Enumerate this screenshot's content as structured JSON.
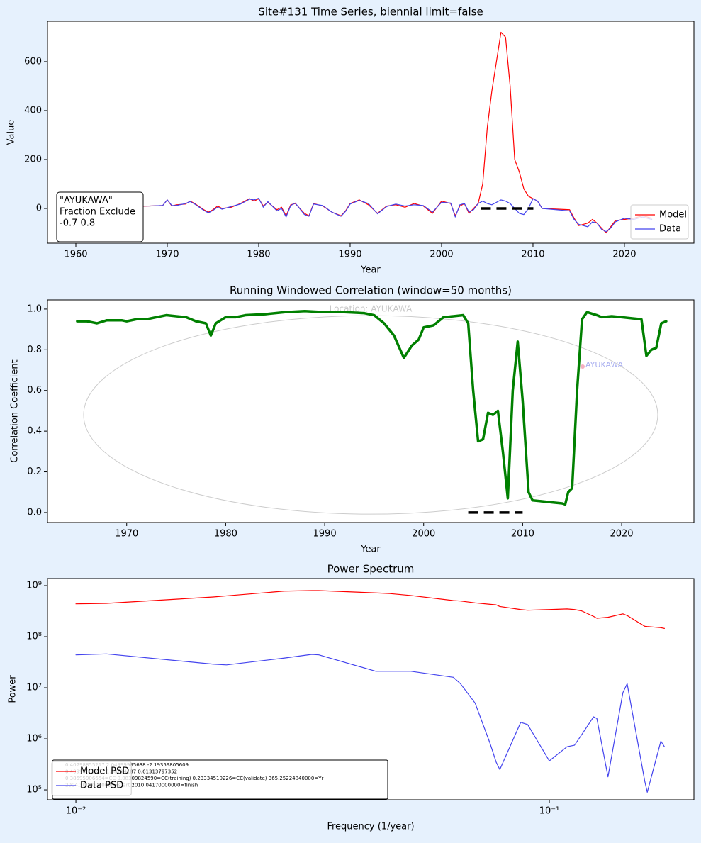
{
  "chart_data": [
    {
      "type": "line",
      "title": "Site#131 Time Series, biennial limit=false",
      "x_label": "Year",
      "y_label": "Value",
      "xlim": [
        1956.9,
        2027.6
      ],
      "ylim": [
        -142,
        765
      ],
      "xticks": [
        1960,
        1970,
        1980,
        1990,
        2000,
        2010,
        2020
      ],
      "yticks": [
        0,
        200,
        400,
        600
      ],
      "legend": "lower right",
      "annotation_box": [
        "\"AYUKAWA\"",
        "Fraction Exclude",
        "-0.7 0.8"
      ],
      "reference_segment": {
        "x": [
          2004.3,
          2010.04
        ],
        "y": 0,
        "color": "#000000"
      },
      "x": [
        1964,
        1965,
        1966,
        1968,
        1969.5,
        1970,
        1970.5,
        1971,
        1972,
        1972.5,
        1973,
        1974,
        1974.5,
        1975,
        1975.5,
        1976,
        1977,
        1978,
        1979,
        1979.5,
        1980,
        1980.5,
        1981,
        1982,
        1982.5,
        1983,
        1983.5,
        1984,
        1985,
        1985.5,
        1986,
        1987,
        1988,
        1989,
        1989.5,
        1990,
        1991,
        1992,
        1993,
        1994,
        1995,
        1996,
        1997,
        1998,
        1999,
        2000,
        2001,
        2001.5,
        2002,
        2002.5,
        2003,
        2003.5,
        2004,
        2004.5,
        2005,
        2005.5,
        2006,
        2006.5,
        2007,
        2007.5,
        2008,
        2008.5,
        2009,
        2009.5,
        2010,
        2010.5,
        2011,
        2014,
        2014.5,
        2015,
        2016,
        2016.5,
        2017,
        2017.5,
        2018,
        2018.5,
        2019,
        2020,
        2021,
        2022,
        2023
      ],
      "series": [
        {
          "name": "Model",
          "color": "#ff0000",
          "linewidth": 1.2,
          "values": [
            20,
            15,
            8,
            10,
            12,
            35,
            10,
            15,
            18,
            30,
            20,
            -5,
            -15,
            -5,
            10,
            0,
            5,
            20,
            40,
            30,
            40,
            10,
            25,
            -5,
            5,
            -30,
            15,
            20,
            -20,
            -30,
            20,
            10,
            -15,
            -30,
            -10,
            20,
            35,
            15,
            -20,
            10,
            15,
            5,
            20,
            10,
            -20,
            30,
            20,
            -30,
            10,
            20,
            -20,
            0,
            20,
            100,
            330,
            480,
            600,
            720,
            700,
            500,
            200,
            150,
            80,
            50,
            40,
            30,
            0,
            -5,
            -40,
            -70,
            -60,
            -45,
            -60,
            -80,
            -100,
            -75,
            -50,
            -45,
            -40,
            -30,
            -40
          ]
        },
        {
          "name": "Data",
          "color": "#4444ee",
          "linewidth": 1.2,
          "values": [
            25,
            18,
            10,
            10,
            12,
            35,
            12,
            12,
            20,
            28,
            18,
            -8,
            -18,
            -8,
            5,
            -3,
            8,
            18,
            38,
            35,
            42,
            5,
            28,
            -10,
            0,
            -35,
            12,
            22,
            -25,
            -32,
            18,
            12,
            -15,
            -32,
            -12,
            18,
            33,
            20,
            -22,
            8,
            18,
            10,
            15,
            12,
            -15,
            25,
            22,
            -35,
            15,
            20,
            -15,
            -5,
            20,
            30,
            20,
            15,
            25,
            35,
            30,
            20,
            0,
            -20,
            -25,
            0,
            40,
            30,
            0,
            -10,
            -45,
            -65,
            -75,
            -55,
            -60,
            -85,
            -95,
            -80,
            -55,
            -40,
            -45,
            -35,
            -45
          ]
        }
      ]
    },
    {
      "type": "line",
      "title": "Running Windowed Correlation (window=50 months)",
      "x_label": "Year",
      "y_label": "Correlation Coefficient",
      "xlim": [
        1962.0,
        2027.3
      ],
      "ylim": [
        -0.049,
        1.045
      ],
      "xticks": [
        1970,
        1980,
        1990,
        2000,
        2010,
        2020
      ],
      "yticks": [
        {
          "value": 0,
          "label": "0.0"
        },
        0.2,
        0.4,
        0.6,
        0.8,
        {
          "value": 1,
          "label": "1.0"
        }
      ],
      "map": {
        "title": "Location: AYUKAWA",
        "site_label": "AYUKAWA"
      },
      "reference_segment": {
        "x": [
          2004.5,
          2010.0
        ],
        "y": 0,
        "color": "#000000"
      },
      "x": [
        1965,
        1966,
        1967,
        1968,
        1969.5,
        1970,
        1971,
        1972,
        1973,
        1974,
        1975,
        1976,
        1977,
        1978,
        1978.5,
        1979,
        1980,
        1981,
        1982,
        1984,
        1986,
        1988,
        1990,
        1992,
        1994,
        1995,
        1996,
        1997,
        1998,
        1998.8,
        1999.5,
        2000,
        2001,
        2002,
        2003,
        2004,
        2004.5,
        2005,
        2005.5,
        2006,
        2006.5,
        2007,
        2007.5,
        2008,
        2008.5,
        2009,
        2009.5,
        2010,
        2010.6,
        2011,
        2012,
        2013,
        2014,
        2014.3,
        2014.6,
        2015,
        2015.5,
        2016,
        2016.5,
        2017.5,
        2018,
        2019,
        2020,
        2021,
        2022,
        2022.5,
        2023,
        2023.5,
        2024,
        2024.5
      ],
      "series": [
        {
          "name": "Correlation",
          "color": "#008000",
          "linewidth": 3.5,
          "values": [
            0.94,
            0.94,
            0.93,
            0.945,
            0.945,
            0.94,
            0.95,
            0.95,
            0.96,
            0.97,
            0.965,
            0.96,
            0.94,
            0.93,
            0.87,
            0.93,
            0.96,
            0.96,
            0.97,
            0.975,
            0.985,
            0.99,
            0.985,
            0.985,
            0.98,
            0.97,
            0.93,
            0.87,
            0.76,
            0.82,
            0.85,
            0.91,
            0.92,
            0.96,
            0.965,
            0.97,
            0.93,
            0.6,
            0.35,
            0.36,
            0.49,
            0.48,
            0.5,
            0.3,
            0.07,
            0.6,
            0.84,
            0.55,
            0.1,
            0.06,
            0.055,
            0.05,
            0.045,
            0.04,
            0.1,
            0.12,
            0.6,
            0.95,
            0.985,
            0.97,
            0.96,
            0.965,
            0.96,
            0.955,
            0.95,
            0.77,
            0.8,
            0.81,
            0.93,
            0.94
          ]
        }
      ]
    },
    {
      "type": "line",
      "title": "Power Spectrum",
      "x_label": "Frequency (1/year)",
      "y_label": "Power",
      "xscale": "log",
      "yscale": "log",
      "xlim": [
        0.00871,
        0.202
      ],
      "ylim": [
        64000,
        1377000000
      ],
      "xticks": [
        {
          "value": 0.01,
          "label": "10⁻²"
        },
        {
          "value": 0.1,
          "label": "10⁻¹"
        }
      ],
      "yticks": [
        {
          "value": 100000,
          "label": "10⁵"
        },
        {
          "value": 1000000,
          "label": "10⁶"
        },
        {
          "value": 10000000,
          "label": "10⁷"
        },
        {
          "value": 100000000,
          "label": "10⁸"
        },
        {
          "value": 1000000000,
          "label": "10⁹"
        }
      ],
      "legend": "lower left",
      "info_box": [
        "0.40798855217      2.04999985638      -2.19359805609",
        "0.40998855217      1.58714187      0.61313797352",
        "0.38595906654=CC      0.08309824590=CC(training)      0.23334510226=CC(validate)   365.25224840000=Yr",
        "2004.30000000000=start  2010.04170000000=finish"
      ],
      "x": [
        0.01,
        0.0116,
        0.0195,
        0.0208,
        0.0275,
        0.0315,
        0.0326,
        0.043,
        0.046,
        0.051,
        0.0627,
        0.0649,
        0.0697,
        0.075,
        0.0772,
        0.0786,
        0.087,
        0.09,
        0.1,
        0.109,
        0.113,
        0.117,
        0.124,
        0.126,
        0.133,
        0.143,
        0.146,
        0.159,
        0.161,
        0.172,
        0.175
      ],
      "series": [
        {
          "name": "Model PSD",
          "color": "#ff0000",
          "linewidth": 1.2,
          "values": [
            440000000,
            450000000,
            600000000,
            630000000,
            780000000,
            800000000,
            800000000,
            720000000,
            700000000,
            640000000,
            510000000,
            500000000,
            460000000,
            430000000,
            420000000,
            390000000,
            340000000,
            330000000,
            340000000,
            350000000,
            340000000,
            320000000,
            250000000,
            230000000,
            240000000,
            280000000,
            260000000,
            160000000,
            158000000,
            150000000,
            145000000
          ]
        },
        {
          "name": "Data PSD",
          "color": "#4444ee",
          "linewidth": 1.2,
          "values": [
            44000000,
            46000000,
            29000000,
            28000000,
            38000000,
            45000000,
            44000000,
            21000000,
            21000000,
            21000000,
            16000000,
            12000000,
            5000000,
            800000,
            350000,
            250000,
            2100000,
            1900000,
            370000,
            700000,
            750000,
            1200000,
            2700000,
            2500000,
            180000,
            8000000,
            12000000,
            150000,
            90000,
            900000,
            700000
          ]
        }
      ]
    }
  ]
}
